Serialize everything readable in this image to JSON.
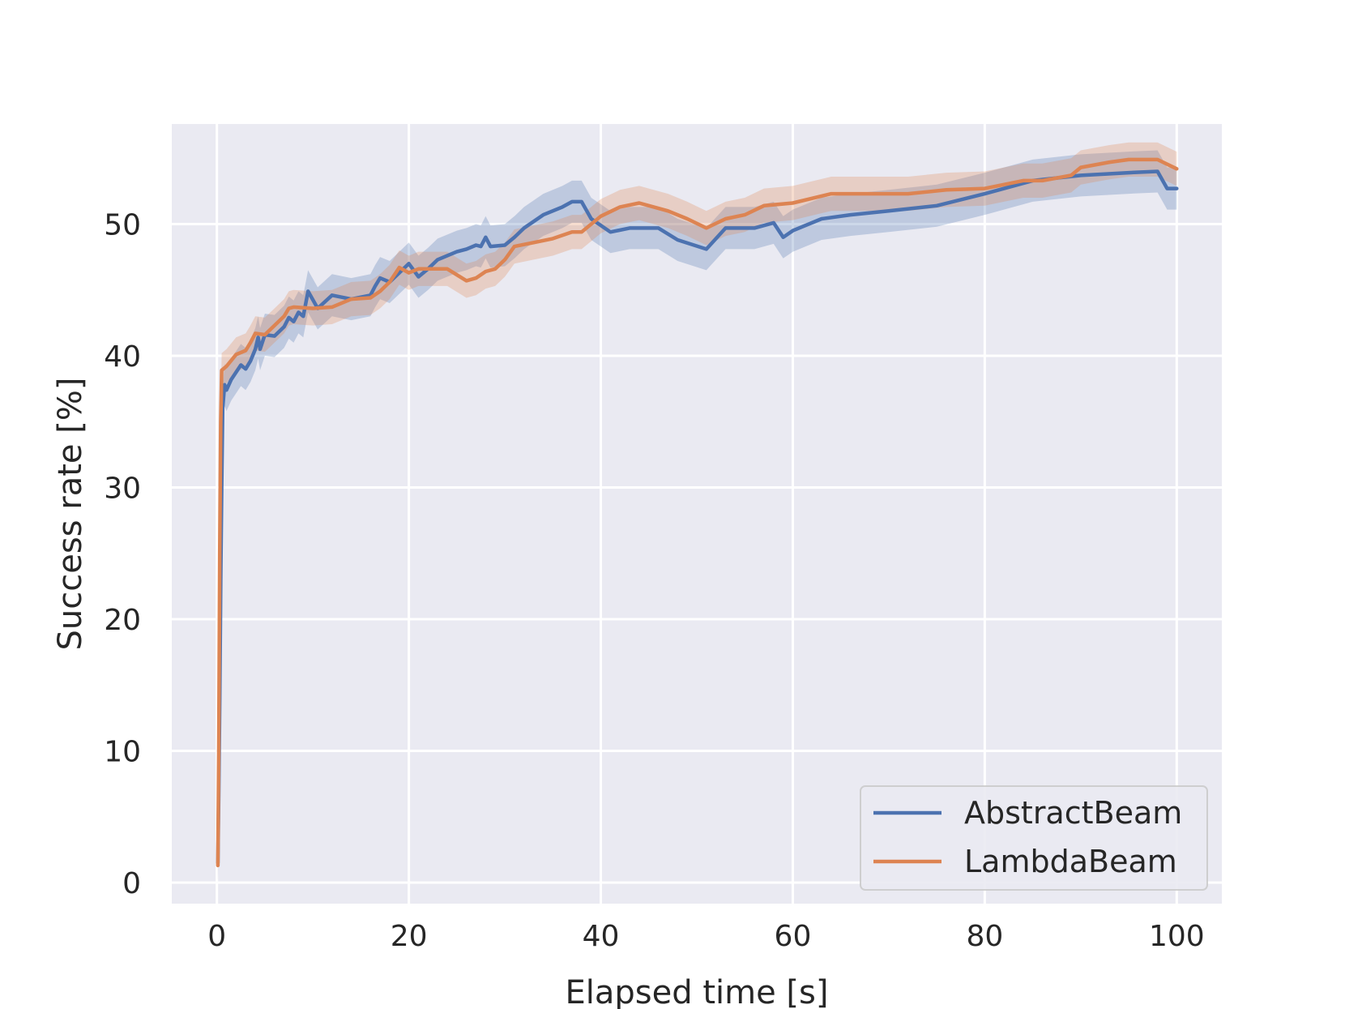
{
  "chart_data": {
    "type": "line",
    "title": "",
    "xlabel": "Elapsed time [s]",
    "ylabel": "Success rate [%]",
    "xlim": [
      -4.7,
      104.7
    ],
    "ylim": [
      -1.6,
      57.6
    ],
    "xticks": [
      0,
      20,
      40,
      60,
      80,
      100
    ],
    "yticks": [
      0,
      10,
      20,
      30,
      40,
      50
    ],
    "grid": true,
    "background": "#EAEAF2",
    "legend_position": "lower-right",
    "series": [
      {
        "name": "AbstractBeam",
        "color": "#4C72B0",
        "points": [
          [
            0.1,
            1.5
          ],
          [
            0.2,
            7
          ],
          [
            0.3,
            14
          ],
          [
            0.4,
            23
          ],
          [
            0.5,
            30
          ],
          [
            0.6,
            36
          ],
          [
            0.8,
            37.8
          ],
          [
            1,
            37.4
          ],
          [
            1.5,
            38.2
          ],
          [
            2.5,
            39.3
          ],
          [
            3,
            39.0
          ],
          [
            3.5,
            39.6
          ],
          [
            4,
            40.5
          ],
          [
            4.3,
            41.4
          ],
          [
            4.5,
            40.5
          ],
          [
            5,
            41.6
          ],
          [
            6,
            41.5
          ],
          [
            7,
            42.2
          ],
          [
            7.5,
            42.9
          ],
          [
            8,
            42.6
          ],
          [
            8.5,
            43.3
          ],
          [
            9,
            43.0
          ],
          [
            9.5,
            44.9
          ],
          [
            10.5,
            43.6
          ],
          [
            12,
            44.6
          ],
          [
            14,
            44.3
          ],
          [
            16,
            44.6
          ],
          [
            16.5,
            45.3
          ],
          [
            17,
            45.9
          ],
          [
            18,
            45.6
          ],
          [
            19,
            46.3
          ],
          [
            20,
            47.0
          ],
          [
            21,
            46.0
          ],
          [
            22,
            46.6
          ],
          [
            23,
            47.3
          ],
          [
            25,
            47.9
          ],
          [
            26,
            48.1
          ],
          [
            27,
            48.4
          ],
          [
            27.5,
            48.3
          ],
          [
            28,
            49.0
          ],
          [
            28.5,
            48.3
          ],
          [
            30,
            48.4
          ],
          [
            31,
            49.0
          ],
          [
            32,
            49.7
          ],
          [
            34,
            50.7
          ],
          [
            36,
            51.3
          ],
          [
            37,
            51.7
          ],
          [
            38,
            51.7
          ],
          [
            39,
            50.4
          ],
          [
            41,
            49.4
          ],
          [
            43,
            49.7
          ],
          [
            46,
            49.7
          ],
          [
            48,
            48.8
          ],
          [
            51,
            48.1
          ],
          [
            53,
            49.7
          ],
          [
            56,
            49.7
          ],
          [
            58,
            50.1
          ],
          [
            59,
            49.0
          ],
          [
            60,
            49.5
          ],
          [
            63,
            50.4
          ],
          [
            66,
            50.7
          ],
          [
            70,
            51.0
          ],
          [
            75,
            51.4
          ],
          [
            80,
            52.3
          ],
          [
            85,
            53.3
          ],
          [
            90,
            53.7
          ],
          [
            95,
            53.9
          ],
          [
            98,
            54.0
          ],
          [
            99,
            52.7
          ],
          [
            100,
            52.7
          ]
        ]
      },
      {
        "name": "LambdaBeam",
        "color": "#DD8452",
        "points": [
          [
            0.1,
            1.3
          ],
          [
            0.2,
            10
          ],
          [
            0.3,
            25
          ],
          [
            0.4,
            35
          ],
          [
            0.5,
            38.9
          ],
          [
            1,
            39.2
          ],
          [
            2,
            40.1
          ],
          [
            3,
            40.4
          ],
          [
            3.5,
            41.0
          ],
          [
            4,
            41.7
          ],
          [
            5,
            41.6
          ],
          [
            6,
            42.3
          ],
          [
            7,
            43.0
          ],
          [
            7.5,
            43.6
          ],
          [
            8,
            43.7
          ],
          [
            10,
            43.6
          ],
          [
            12,
            43.7
          ],
          [
            14,
            44.3
          ],
          [
            16,
            44.4
          ],
          [
            17,
            44.9
          ],
          [
            18,
            45.6
          ],
          [
            19,
            46.7
          ],
          [
            20,
            46.3
          ],
          [
            21,
            46.6
          ],
          [
            24,
            46.6
          ],
          [
            26,
            45.7
          ],
          [
            27,
            45.9
          ],
          [
            28,
            46.4
          ],
          [
            29,
            46.6
          ],
          [
            30,
            47.3
          ],
          [
            31,
            48.3
          ],
          [
            33,
            48.6
          ],
          [
            35,
            48.9
          ],
          [
            37,
            49.4
          ],
          [
            38,
            49.4
          ],
          [
            40,
            50.6
          ],
          [
            42,
            51.3
          ],
          [
            44,
            51.6
          ],
          [
            47,
            51.0
          ],
          [
            49,
            50.4
          ],
          [
            51,
            49.7
          ],
          [
            53,
            50.4
          ],
          [
            55,
            50.7
          ],
          [
            57,
            51.4
          ],
          [
            60,
            51.6
          ],
          [
            64,
            52.3
          ],
          [
            68,
            52.3
          ],
          [
            72,
            52.3
          ],
          [
            76,
            52.6
          ],
          [
            80,
            52.7
          ],
          [
            84,
            53.3
          ],
          [
            86,
            53.3
          ],
          [
            89,
            53.7
          ],
          [
            90,
            54.3
          ],
          [
            93,
            54.7
          ],
          [
            95,
            54.9
          ],
          [
            98,
            54.9
          ],
          [
            100,
            54.2
          ]
        ]
      }
    ]
  },
  "legend": {
    "items": [
      "AbstractBeam",
      "LambdaBeam"
    ]
  }
}
